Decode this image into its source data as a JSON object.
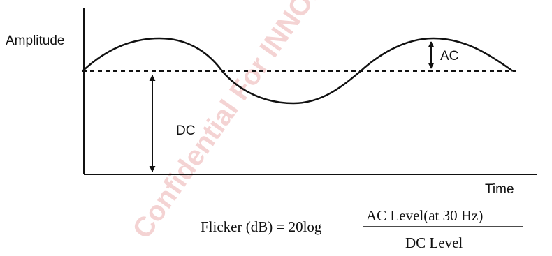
{
  "labels": {
    "y_axis": "Amplitude",
    "x_axis": "Time",
    "ac": "AC",
    "dc": "DC"
  },
  "formula": {
    "lhs": "Flicker (dB) = 20log",
    "numerator": "AC  Level(at 30 Hz)",
    "denominator": "DC  Level"
  },
  "watermark": "Confidential For INNOLUX Internal",
  "colors": {
    "ink": "#111111",
    "watermark": "#e8a0a0"
  }
}
